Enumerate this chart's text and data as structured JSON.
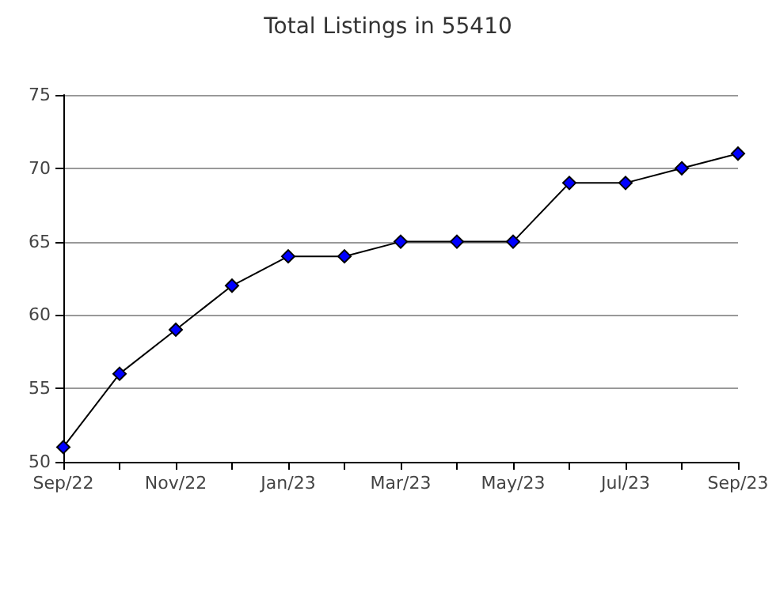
{
  "chart_data": {
    "type": "line",
    "title": "Total Listings in 55410",
    "categories": [
      "Sep/22",
      null,
      "Nov/22",
      null,
      "Jan/23",
      null,
      "Mar/23",
      null,
      "May/23",
      null,
      "Jul/23",
      null,
      "Sep/23"
    ],
    "series": [
      {
        "color": "#0000ff",
        "values": [
          51,
          56,
          59,
          62,
          64,
          64,
          65,
          65,
          65,
          69,
          69,
          70,
          71
        ]
      }
    ],
    "ylim": [
      50,
      75
    ],
    "yticks": [
      50,
      55,
      60,
      65,
      70,
      75
    ],
    "grid": "y",
    "marker": "diamond",
    "line_style": "solid"
  }
}
